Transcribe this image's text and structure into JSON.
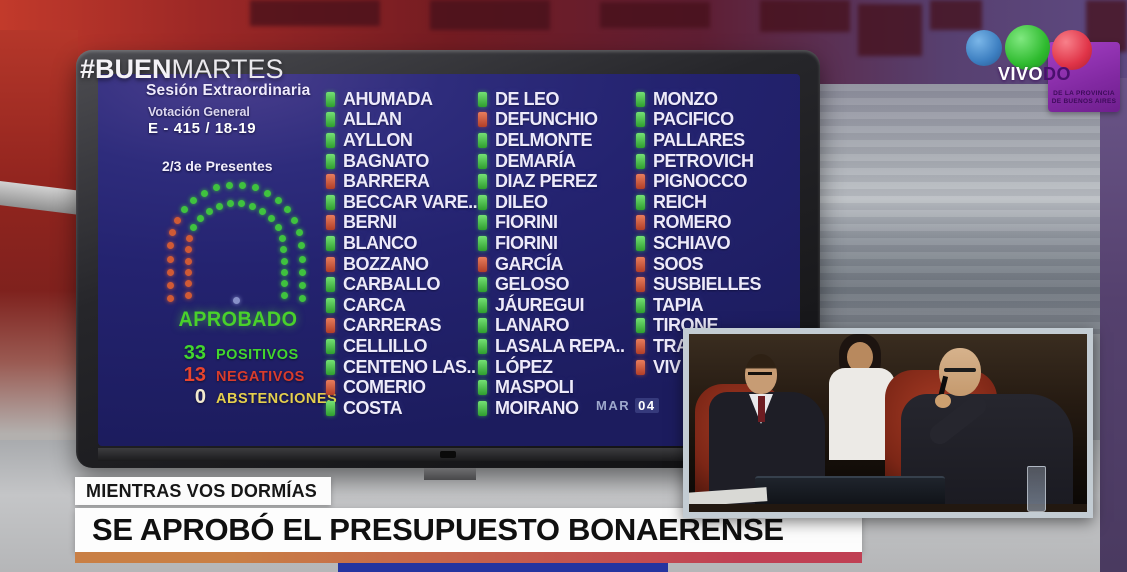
{
  "broadcast": {
    "hashtag": {
      "bold": "#BUEN",
      "light": "MARTES"
    },
    "channel_bug": {
      "live": "VIVO",
      "badge_suffix": "DO",
      "badge_line1": "DE LA PROVINCIA",
      "badge_line2": "DE BUENOS AIRES",
      "circle_colors": [
        "#3d7fc1",
        "#2fbb2f",
        "#e03448"
      ]
    },
    "lower_third": {
      "kicker": "MIENTRAS VOS DORMÍAS",
      "headline": "SE APROBÓ EL PRESUPUESTO BONAERENSE",
      "strip_gradient": [
        "#c97f45",
        "#c04054"
      ]
    }
  },
  "board": {
    "session": "Sesión Extraordinaria",
    "vote_title": "Votación General",
    "file_number": "E - 415 / 18-19",
    "quorum_rule": "2/3 de Presentes",
    "result": "APROBADO",
    "result_color": "#49d12b",
    "date": {
      "month": "MAR",
      "day": "04"
    },
    "tallies": [
      {
        "value": "33",
        "label": "POSITIVOS",
        "value_color": "#42d62e",
        "label_color": "#42d62e"
      },
      {
        "value": "13",
        "label": "NEGATIVOS",
        "value_color": "#e8442e",
        "label_color": "#d93c2c"
      },
      {
        "value": "0",
        "label": "ABSTENCIONES",
        "value_color": "#f2e9cf",
        "label_color": "#e5cf4e"
      }
    ],
    "vote_colors": {
      "positive": "#3fc23f",
      "negative": "#d05a35",
      "neutral": "#8890c8"
    },
    "seatmap": {
      "arcs": [
        {
          "radius": 66,
          "leg": 54,
          "seats": "rrrrrrrggggggggggggggggg"
        },
        {
          "radius": 48,
          "leg": 50,
          "seats": "rrrrrrgggggggggggggggg"
        }
      ],
      "center_seat": "n"
    },
    "columns": [
      [
        {
          "name": "AHUMADA",
          "vote": "g"
        },
        {
          "name": "ALLAN",
          "vote": "g"
        },
        {
          "name": "AYLLON",
          "vote": "g"
        },
        {
          "name": "BAGNATO",
          "vote": "g"
        },
        {
          "name": "BARRERA",
          "vote": "r"
        },
        {
          "name": "BECCAR VARE..",
          "vote": "g"
        },
        {
          "name": "BERNI",
          "vote": "r"
        },
        {
          "name": "BLANCO",
          "vote": "g"
        },
        {
          "name": "BOZZANO",
          "vote": "r"
        },
        {
          "name": "CARBALLO",
          "vote": "g"
        },
        {
          "name": "CARCA",
          "vote": "g"
        },
        {
          "name": "CARRERAS",
          "vote": "r"
        },
        {
          "name": "CELLILLO",
          "vote": "g"
        },
        {
          "name": "CENTENO LAS..",
          "vote": "g"
        },
        {
          "name": "COMERIO",
          "vote": "r"
        },
        {
          "name": "COSTA",
          "vote": "g"
        }
      ],
      [
        {
          "name": "DE LEO",
          "vote": "g"
        },
        {
          "name": "DEFUNCHIO",
          "vote": "r"
        },
        {
          "name": "DELMONTE",
          "vote": "g"
        },
        {
          "name": "DEMARÍA",
          "vote": "g"
        },
        {
          "name": "DIAZ PEREZ",
          "vote": "g"
        },
        {
          "name": "DILEO",
          "vote": "g"
        },
        {
          "name": "FIORINI",
          "vote": "g"
        },
        {
          "name": "FIORINI",
          "vote": "g"
        },
        {
          "name": "GARCÍA",
          "vote": "r"
        },
        {
          "name": "GELOSO",
          "vote": "g"
        },
        {
          "name": "JÁUREGUI",
          "vote": "g"
        },
        {
          "name": "LANARO",
          "vote": "g"
        },
        {
          "name": "LASALA REPA..",
          "vote": "g"
        },
        {
          "name": "LÓPEZ",
          "vote": "g"
        },
        {
          "name": "MASPOLI",
          "vote": "g"
        },
        {
          "name": "MOIRANO",
          "vote": "g"
        }
      ],
      [
        {
          "name": "MONZO",
          "vote": "g"
        },
        {
          "name": "PACIFICO",
          "vote": "g"
        },
        {
          "name": "PALLARES",
          "vote": "g"
        },
        {
          "name": "PETROVICH",
          "vote": "g"
        },
        {
          "name": "PIGNOCCO",
          "vote": "r"
        },
        {
          "name": "REICH",
          "vote": "g"
        },
        {
          "name": "ROMERO",
          "vote": "r"
        },
        {
          "name": "SCHIAVO",
          "vote": "g"
        },
        {
          "name": "SOOS",
          "vote": "r"
        },
        {
          "name": "SUSBIELLES",
          "vote": "r"
        },
        {
          "name": "TAPIA",
          "vote": "g"
        },
        {
          "name": "TIRONE",
          "vote": "g"
        },
        {
          "name": "TRA",
          "vote": "r"
        },
        {
          "name": "VIV",
          "vote": "r"
        }
      ]
    ]
  }
}
